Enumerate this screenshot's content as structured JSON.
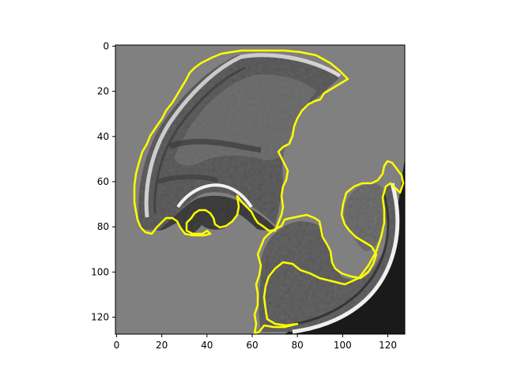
{
  "chart_data": {
    "type": "image",
    "xlim": [
      0,
      128
    ],
    "ylim": [
      128,
      0
    ],
    "x_ticks": [
      0,
      20,
      40,
      60,
      80,
      100,
      120
    ],
    "y_ticks": [
      0,
      20,
      40,
      60,
      80,
      100,
      120
    ],
    "x_tick_labels": [
      "0",
      "20",
      "40",
      "60",
      "80",
      "100",
      "120"
    ],
    "y_tick_labels": [
      "0",
      "20",
      "40",
      "60",
      "80",
      "100",
      "120"
    ],
    "background_color": "#808080",
    "contour_color": "#ffff00",
    "grid": false,
    "title": "",
    "xlabel": "",
    "ylabel": ""
  }
}
